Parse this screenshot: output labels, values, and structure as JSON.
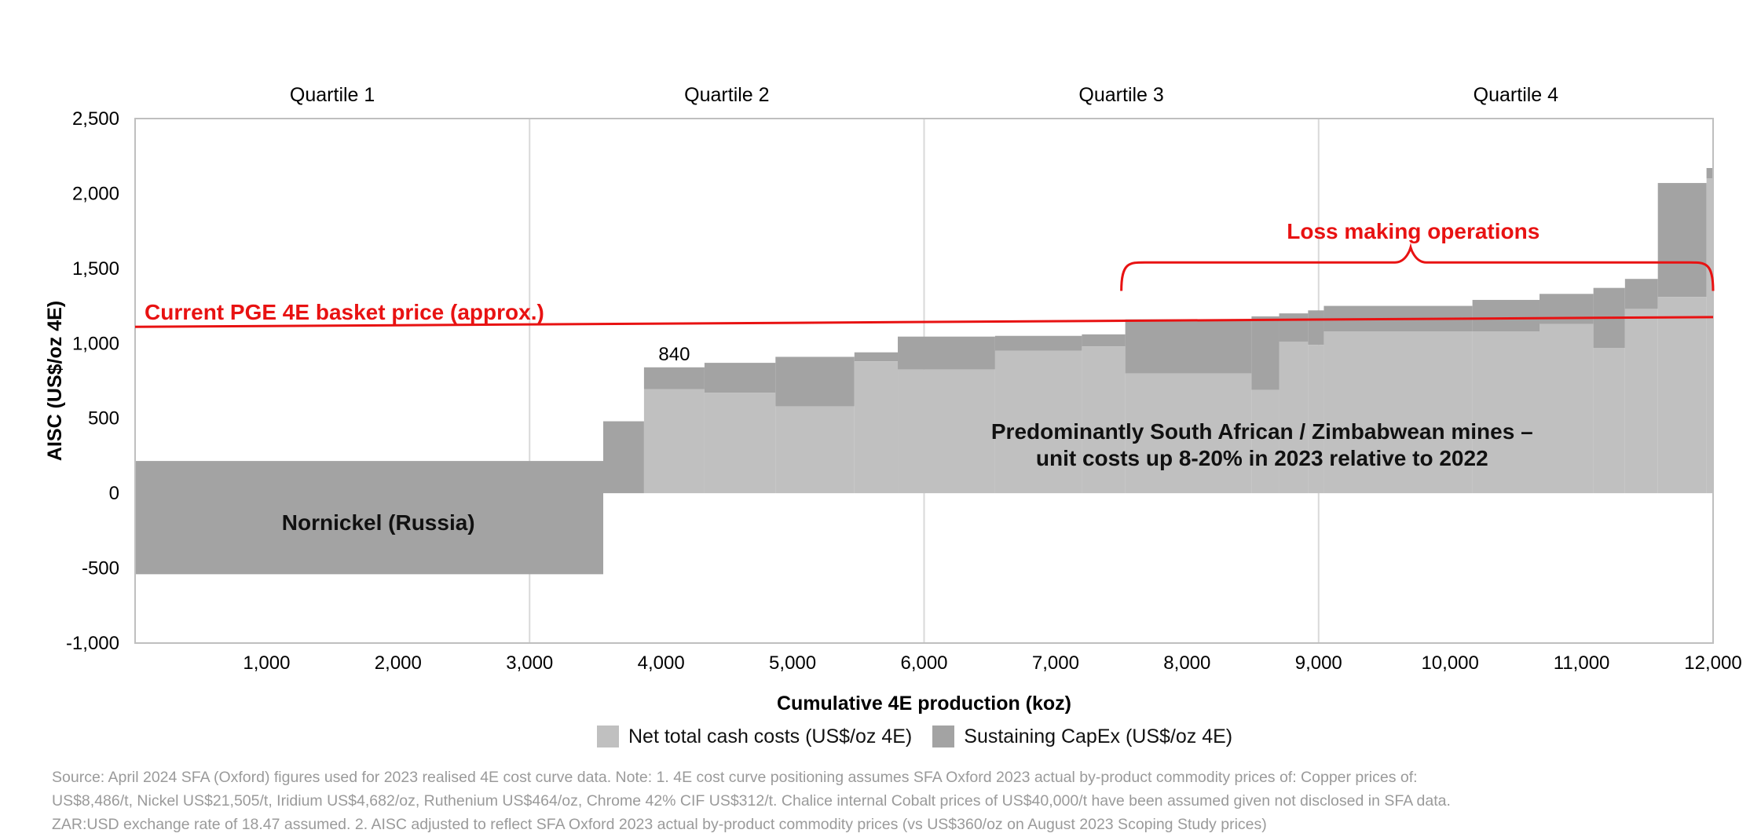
{
  "chart_data": {
    "type": "bar",
    "subtype": "cost-curve (variable-width stacked)",
    "xlabel": "Cumulative 4E production (koz)",
    "ylabel": "AISC (US$/oz 4E)",
    "xlim": [
      0,
      12000
    ],
    "ylim": [
      -1000,
      2500
    ],
    "x_ticks": [
      "1,000",
      "2,000",
      "3,000",
      "4,000",
      "5,000",
      "6,000",
      "7,000",
      "8,000",
      "9,000",
      "10,000",
      "11,000",
      "12,000"
    ],
    "y_ticks": [
      "2,500",
      "2,000",
      "1,500",
      "1,000",
      "500",
      "0",
      "-500",
      "-1,000"
    ],
    "quartiles": [
      "Quartile 1",
      "Quartile 2",
      "Quartile 3",
      "Quartile 4"
    ],
    "quartile_boundaries": [
      3000,
      6000,
      9000
    ],
    "colors": {
      "net_cash": "#c0c0c0",
      "capex": "#a3a3a3",
      "price_line": "#e81212"
    },
    "series": [
      {
        "name": "Net total cash costs (US$/oz 4E)"
      },
      {
        "name": "Sustaining CapEx (US$/oz 4E)"
      }
    ],
    "operations": [
      {
        "x0": 0,
        "x1": 3560,
        "cash": -540,
        "aisc": 215
      },
      {
        "x0": 3560,
        "x1": 3870,
        "cash": 0,
        "aisc": 480
      },
      {
        "x0": 3870,
        "x1": 4330,
        "cash": 695,
        "aisc": 840
      },
      {
        "x0": 4330,
        "x1": 4870,
        "cash": 670,
        "aisc": 870
      },
      {
        "x0": 4870,
        "x1": 5470,
        "cash": 580,
        "aisc": 910
      },
      {
        "x0": 5470,
        "x1": 5800,
        "cash": 880,
        "aisc": 940
      },
      {
        "x0": 5800,
        "x1": 6540,
        "cash": 825,
        "aisc": 1045
      },
      {
        "x0": 6540,
        "x1": 7200,
        "cash": 950,
        "aisc": 1050
      },
      {
        "x0": 7200,
        "x1": 7530,
        "cash": 980,
        "aisc": 1060
      },
      {
        "x0": 7530,
        "x1": 8490,
        "cash": 800,
        "aisc": 1160
      },
      {
        "x0": 8490,
        "x1": 8700,
        "cash": 690,
        "aisc": 1180
      },
      {
        "x0": 8700,
        "x1": 8920,
        "cash": 1010,
        "aisc": 1200
      },
      {
        "x0": 8920,
        "x1": 9040,
        "cash": 990,
        "aisc": 1220
      },
      {
        "x0": 9040,
        "x1": 10170,
        "cash": 1080,
        "aisc": 1250
      },
      {
        "x0": 10170,
        "x1": 10680,
        "cash": 1080,
        "aisc": 1290
      },
      {
        "x0": 10680,
        "x1": 11090,
        "cash": 1130,
        "aisc": 1330
      },
      {
        "x0": 11090,
        "x1": 11330,
        "cash": 970,
        "aisc": 1370
      },
      {
        "x0": 11330,
        "x1": 11580,
        "cash": 1230,
        "aisc": 1430
      },
      {
        "x0": 11580,
        "x1": 11950,
        "cash": 1310,
        "aisc": 2070
      },
      {
        "x0": 11950,
        "x1": 12000,
        "cash": 2100,
        "aisc": 2170
      }
    ],
    "price_line": {
      "label": "Current PGE 4E basket price (approx.)",
      "y_start": 1110,
      "y_end": 1175
    },
    "annotations": {
      "loss_making": "Loss making operations",
      "sa_zim_line1": "Predominantly South African / Zimbabwean mines –",
      "sa_zim_line2": "unit costs up 8-20% in 2023 relative to 2022",
      "nornickel": "Nornickel (Russia)",
      "value_840": "840"
    }
  },
  "legend": {
    "net_cash": "Net total cash costs (US$/oz 4E)",
    "capex": "Sustaining CapEx (US$/oz 4E)"
  },
  "source": {
    "line1": "Source: April 2024 SFA (Oxford) figures used for 2023 realised 4E cost curve data. Note: 1. 4E cost curve positioning assumes SFA Oxford 2023 actual by-product commodity prices of: Copper prices of:",
    "line2": "US$8,486/t, Nickel US$21,505/t, Iridium US$4,682/oz, Ruthenium US$464/oz, Chrome 42% CIF US$312/t. Chalice internal Cobalt prices of US$40,000/t have been assumed given not disclosed in SFA data.",
    "line3": "ZAR:USD exchange rate of 18.47 assumed. 2. AISC adjusted to reflect SFA Oxford 2023 actual by-product commodity prices (vs US$360/oz on August 2023 Scoping Study prices)"
  }
}
